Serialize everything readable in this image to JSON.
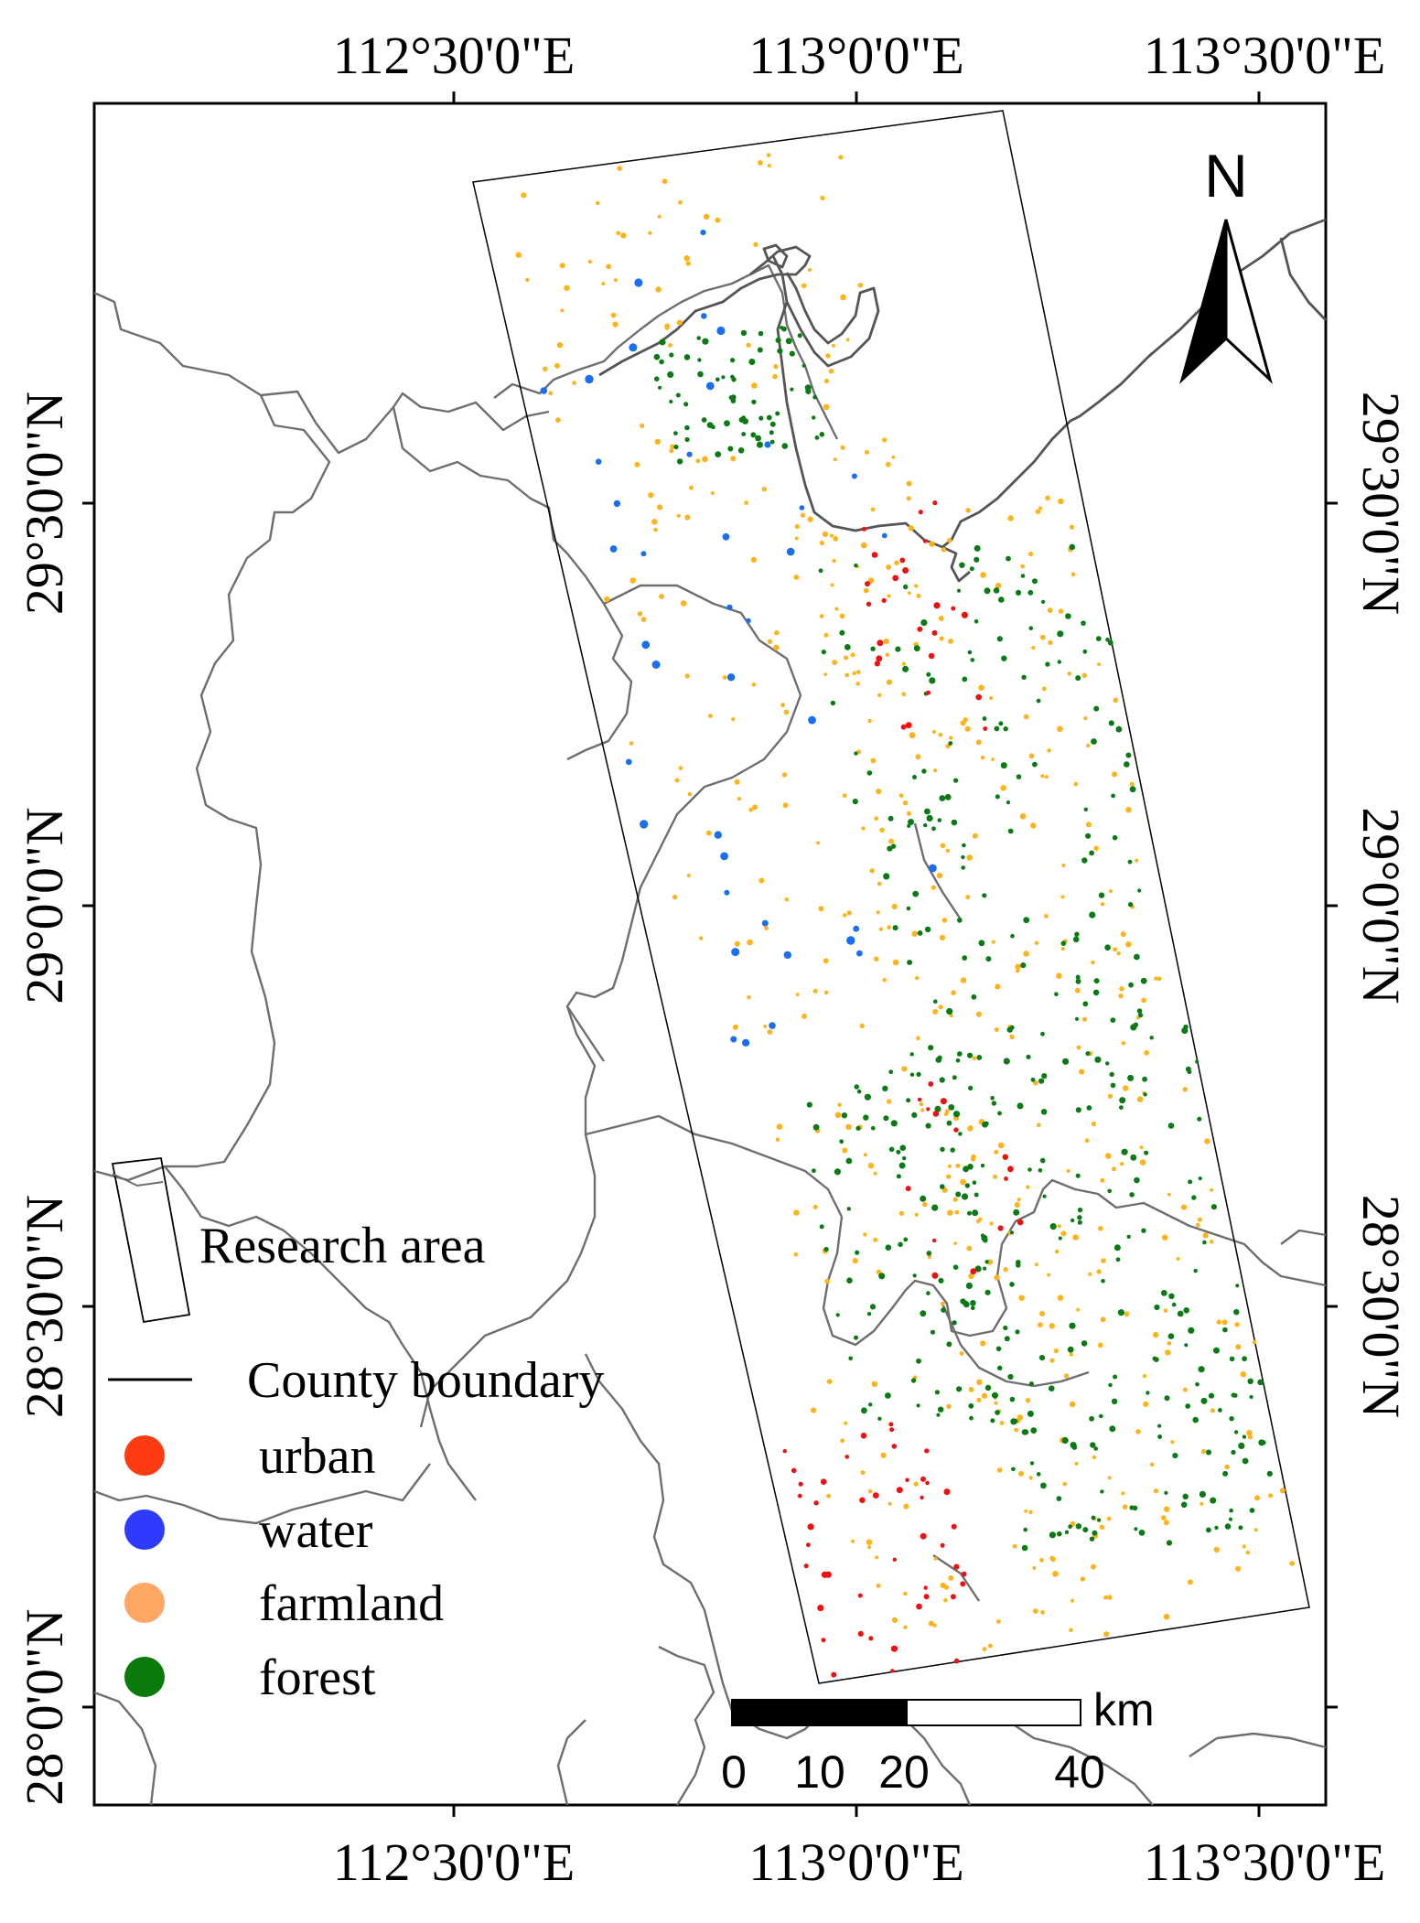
{
  "map": {
    "top_labels": [
      "112°30'0\"E",
      "113°0'0\"E",
      "113°30'0\"E"
    ],
    "bottom_labels": [
      "112°30'0\"E",
      "113°0'0\"E",
      "113°30'0\"E"
    ],
    "left_labels": [
      "29°30'0\"N",
      "29°0'0\"N",
      "28°30'0\"N",
      "28°0'0\"N"
    ],
    "right_labels": [
      "29°30'0\"N",
      "29°0'0\"N",
      "28°30'0\"N"
    ],
    "north_label": "N",
    "research_area_label": "Research area",
    "legend": {
      "county_boundary": "County boundary",
      "items": [
        {
          "label": "urban",
          "color": "#ff3b12"
        },
        {
          "label": "water",
          "color": "#2e3bff"
        },
        {
          "label": "farmland",
          "color": "#ffa866"
        },
        {
          "label": "forest",
          "color": "#0a7a0a"
        }
      ]
    },
    "scale_bar": {
      "unit": "km",
      "ticks": [
        "0",
        "10",
        "20",
        "40"
      ]
    },
    "point_colors": {
      "urban": "#ee1111",
      "water": "#1a6ef0",
      "farmland": "#ffb31a",
      "forest": "#0a7a14"
    }
  }
}
